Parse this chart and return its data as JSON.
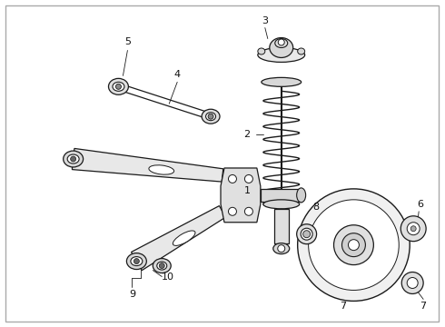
{
  "background_color": "#ffffff",
  "line_color": "#1a1a1a",
  "label_color": "#111111",
  "fig_width": 4.9,
  "fig_height": 3.6,
  "dpi": 100,
  "border_color": "#aaaaaa"
}
